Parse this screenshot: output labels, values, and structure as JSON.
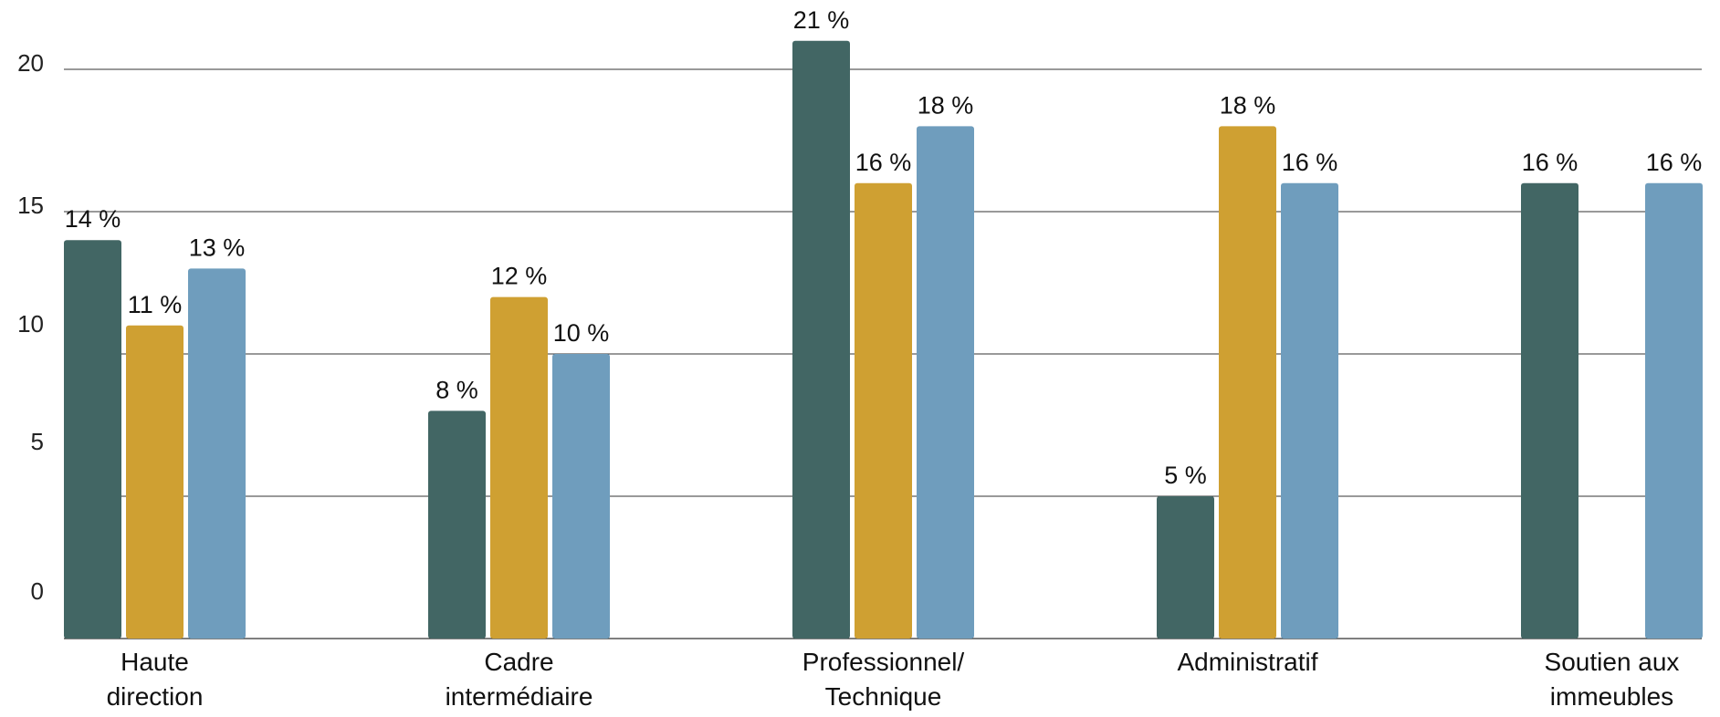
{
  "chart_data": {
    "type": "bar",
    "title": "",
    "xlabel": "",
    "ylabel": "",
    "categories": [
      [
        "Haute",
        "direction"
      ],
      [
        "Cadre",
        "intermédiaire"
      ],
      [
        "Professionnel/",
        "Technique"
      ],
      [
        "Administratif"
      ],
      [
        "Soutien aux",
        "immeubles"
      ]
    ],
    "series": [
      {
        "color": "#426664",
        "values": [
          14,
          8,
          21,
          5,
          16
        ]
      },
      {
        "color": "#CFA032",
        "values": [
          11,
          12,
          16,
          18,
          null
        ]
      },
      {
        "color": "#6F9DBD",
        "values": [
          13,
          10,
          18,
          16,
          16
        ]
      }
    ],
    "data_labels": [
      [
        "14 %",
        "8 %",
        "21 %",
        "5 %",
        "16 %"
      ],
      [
        "11 %",
        "12 %",
        "16 %",
        "18 %",
        ""
      ],
      [
        "13 %",
        "10 %",
        "18 %",
        "16 %",
        "16 %"
      ]
    ],
    "yticks": [
      {
        "label": "0",
        "value": 0
      },
      {
        "label": "5",
        "value": 5
      },
      {
        "label": "10",
        "value": 10
      },
      {
        "label": "15",
        "value": 15
      },
      {
        "label": "20",
        "value": 20
      }
    ],
    "ylim": [
      0,
      20
    ],
    "grid": true,
    "legend": "none"
  }
}
